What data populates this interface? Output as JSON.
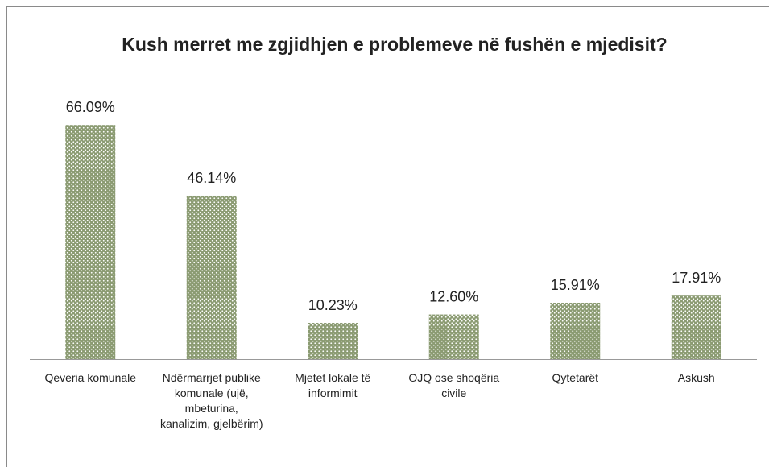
{
  "chart_data": {
    "type": "bar",
    "title": "Kush merret me zgjidhjen e problemeve në fushën e mjedisit?",
    "categories": [
      "Qeveria komunale",
      "Ndërmarrjet publike komunale (ujë, mbeturina, kanalizim, gjelbërim)",
      "Mjetet lokale të informimit",
      "OJQ ose shoqëria civile",
      "Qytetarët",
      "Askush"
    ],
    "values": [
      66.09,
      46.14,
      10.23,
      12.6,
      15.91,
      17.91
    ],
    "value_labels": [
      "66.09%",
      "46.14%",
      "10.23%",
      "12.60%",
      "15.91%",
      "17.91%"
    ],
    "color": "#8b9b72",
    "ylim": [
      0,
      70
    ]
  }
}
